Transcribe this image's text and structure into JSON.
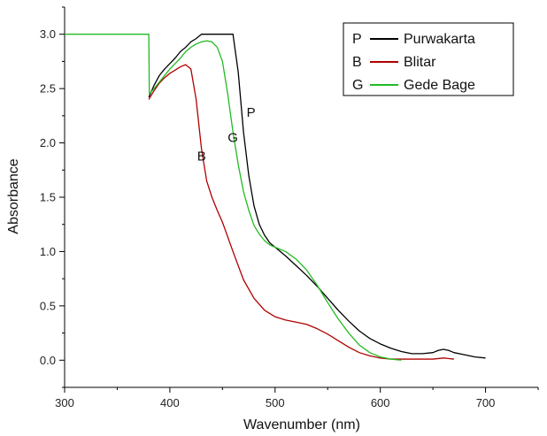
{
  "chart_data": {
    "type": "line",
    "title": "",
    "xlabel": "Wavenumber (nm)",
    "ylabel": "Absorbance",
    "xlim": [
      300,
      750
    ],
    "ylim": [
      -0.25,
      3.25
    ],
    "xticks": [
      "300",
      "400",
      "500",
      "600",
      "700"
    ],
    "yticks": [
      "0.0",
      "0.5",
      "1.0",
      "1.5",
      "2.0",
      "2.5",
      "3.0"
    ],
    "grid": false,
    "legend_position": "top-right",
    "series": [
      {
        "key": "P",
        "name": "Purwakarta",
        "color": "#000000",
        "x": [
          380,
          385,
          390,
          395,
          400,
          405,
          410,
          415,
          420,
          425,
          430,
          435,
          440,
          445,
          450,
          455,
          460,
          465,
          470,
          475,
          480,
          485,
          490,
          495,
          500,
          510,
          520,
          530,
          540,
          550,
          560,
          570,
          580,
          590,
          600,
          610,
          620,
          630,
          640,
          650,
          655,
          660,
          665,
          670,
          680,
          690,
          700
        ],
        "y": [
          2.42,
          2.53,
          2.62,
          2.68,
          2.73,
          2.78,
          2.84,
          2.88,
          2.93,
          2.96,
          3.0,
          3.0,
          3.0,
          3.0,
          3.0,
          3.0,
          3.0,
          2.65,
          2.1,
          1.7,
          1.42,
          1.25,
          1.15,
          1.08,
          1.04,
          0.96,
          0.87,
          0.78,
          0.68,
          0.57,
          0.46,
          0.36,
          0.27,
          0.2,
          0.15,
          0.11,
          0.08,
          0.06,
          0.06,
          0.07,
          0.09,
          0.1,
          0.09,
          0.07,
          0.05,
          0.03,
          0.02
        ]
      },
      {
        "key": "B",
        "name": "Blitar",
        "color": "#b00000",
        "x": [
          380,
          385,
          390,
          395,
          400,
          405,
          410,
          415,
          420,
          425,
          430,
          435,
          440,
          445,
          450,
          460,
          470,
          480,
          490,
          500,
          510,
          520,
          530,
          540,
          550,
          560,
          570,
          580,
          590,
          600,
          610,
          620,
          630,
          640,
          650,
          660,
          670
        ],
        "y": [
          2.4,
          2.48,
          2.55,
          2.6,
          2.64,
          2.67,
          2.7,
          2.72,
          2.68,
          2.4,
          1.95,
          1.65,
          1.5,
          1.38,
          1.27,
          1.0,
          0.74,
          0.57,
          0.46,
          0.4,
          0.37,
          0.35,
          0.33,
          0.29,
          0.24,
          0.18,
          0.12,
          0.07,
          0.04,
          0.02,
          0.01,
          0.01,
          0.01,
          0.01,
          0.01,
          0.02,
          0.01
        ]
      },
      {
        "key": "G",
        "name": "Gede Bage",
        "color": "#22bb22",
        "x": [
          300,
          320,
          340,
          360,
          375,
          380,
          380.5,
          385,
          390,
          395,
          400,
          405,
          410,
          415,
          420,
          425,
          430,
          435,
          440,
          445,
          450,
          455,
          460,
          465,
          470,
          475,
          480,
          485,
          490,
          495,
          500,
          510,
          520,
          530,
          540,
          550,
          560,
          570,
          580,
          590,
          600,
          610,
          620
        ],
        "y": [
          3.0,
          3.0,
          3.0,
          3.0,
          3.0,
          3.0,
          2.45,
          2.5,
          2.56,
          2.62,
          2.68,
          2.73,
          2.78,
          2.84,
          2.88,
          2.91,
          2.93,
          2.94,
          2.93,
          2.88,
          2.75,
          2.45,
          2.1,
          1.8,
          1.55,
          1.38,
          1.24,
          1.16,
          1.1,
          1.06,
          1.04,
          1.0,
          0.93,
          0.83,
          0.69,
          0.53,
          0.38,
          0.25,
          0.14,
          0.07,
          0.03,
          0.01,
          0.0
        ]
      }
    ],
    "annotations": [
      {
        "text": "P",
        "x": 473,
        "y": 2.28
      },
      {
        "text": "G",
        "x": 455,
        "y": 2.05
      },
      {
        "text": "B",
        "x": 426,
        "y": 1.88
      }
    ]
  }
}
